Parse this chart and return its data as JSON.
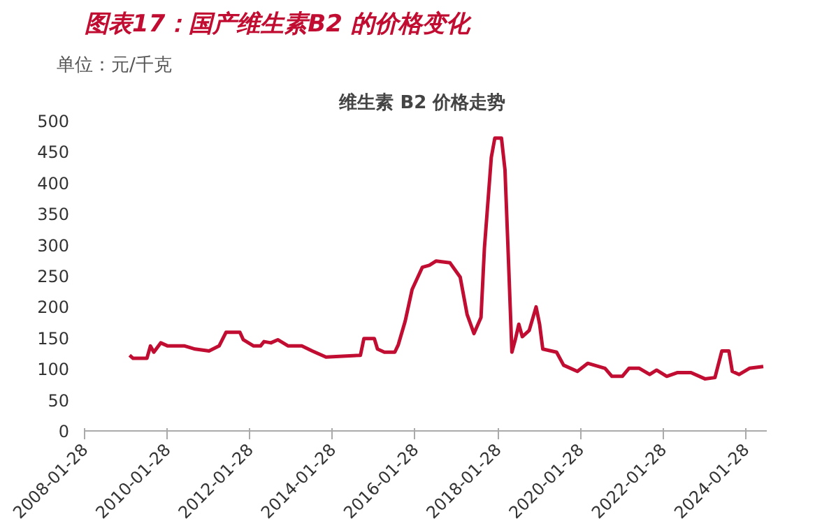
{
  "chart_data": {
    "type": "line",
    "title": "图表17：国产维生素B2 的价格变化",
    "subtitle": "维生素  B2 价格走势",
    "ylabel": "单位：元/千克",
    "x": [
      "2009-03",
      "2009-04",
      "2009-08",
      "2009-09",
      "2009-10",
      "2009-12",
      "2010-02",
      "2010-07",
      "2010-10",
      "2011-02",
      "2011-05",
      "2011-07",
      "2011-11",
      "2011-12",
      "2012-03",
      "2012-05",
      "2012-06",
      "2012-08",
      "2012-10",
      "2013-01",
      "2013-05",
      "2013-08",
      "2013-12",
      "2014-10",
      "2014-11",
      "2015-02",
      "2015-03",
      "2015-05",
      "2015-08",
      "2015-09",
      "2015-11",
      "2016-01",
      "2016-04",
      "2016-06",
      "2016-08",
      "2016-12",
      "2017-03",
      "2017-05",
      "2017-07",
      "2017-09",
      "2017-10",
      "2017-12",
      "2018-01",
      "2018-03",
      "2018-04",
      "2018-05",
      "2018-06",
      "2018-07",
      "2018-08",
      "2018-09",
      "2018-11",
      "2019-01",
      "2019-02",
      "2019-03",
      "2019-07",
      "2019-09",
      "2020-01",
      "2020-04",
      "2020-09",
      "2020-11",
      "2021-02",
      "2021-04",
      "2021-07",
      "2021-10",
      "2021-12",
      "2022-03",
      "2022-06",
      "2022-10",
      "2023-02",
      "2023-05",
      "2023-07",
      "2023-09",
      "2023-10",
      "2023-12",
      "2024-03",
      "2024-07"
    ],
    "series": [
      {
        "color": "#c00d31",
        "values": [
          122,
          117,
          117,
          137,
          127,
          142,
          137,
          137,
          132,
          129,
          137,
          159,
          159,
          147,
          137,
          137,
          144,
          142,
          147,
          137,
          137,
          129,
          119,
          122,
          149,
          149,
          132,
          127,
          127,
          139,
          177,
          228,
          264,
          267,
          274,
          271,
          248,
          188,
          157,
          183,
          294,
          441,
          472,
          472,
          421,
          279,
          127,
          147,
          172,
          152,
          162,
          200,
          172,
          132,
          127,
          106,
          96,
          109,
          101,
          88,
          88,
          101,
          101,
          91,
          98,
          88,
          94,
          94,
          84,
          86,
          129,
          129,
          96,
          91,
          101,
          104
        ]
      }
    ],
    "xlim": [
      "2008-01-28",
      "2024-08"
    ],
    "xticks": [
      "2008-01-28",
      "2010-01-28",
      "2012-01-28",
      "2014-01-28",
      "2016-01-28",
      "2018-01-28",
      "2020-01-28",
      "2022-01-28",
      "2024-01-28"
    ],
    "ylim": [
      0,
      500
    ],
    "yticks": [
      0,
      50,
      100,
      150,
      200,
      250,
      300,
      350,
      400,
      450,
      500
    ],
    "grid": false,
    "marker": "none",
    "line_style": "solid"
  }
}
